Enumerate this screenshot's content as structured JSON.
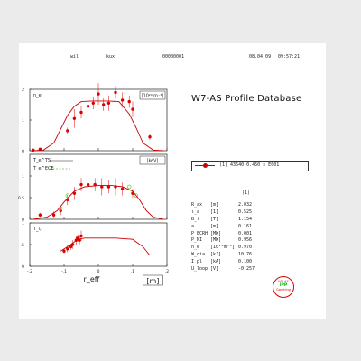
{
  "header": {
    "user": "wil",
    "kind": "kux",
    "shot_id": "00000001",
    "date": "08.04.09",
    "time": "09:57:21"
  },
  "title": "W7-AS   Profile Database",
  "legend": {
    "entry": "(1)  43640  0.450 s  E001"
  },
  "params": {
    "index": "(1)",
    "rows": [
      {
        "name": "R_ax",
        "unit": "[m]",
        "value": "2.032"
      },
      {
        "name": "ι_a",
        "unit": "[1]",
        "value": "0.525"
      },
      {
        "name": "B_t",
        "unit": "[T]",
        "value": "1.154"
      },
      {
        "name": "a",
        "unit": "[m]",
        "value": "0.161"
      },
      {
        "name": "P_ECRH",
        "unit": "[MW]",
        "value": "0.001"
      },
      {
        "name": "P_NI",
        "unit": "[MW]",
        "value": "0.956"
      },
      {
        "name": "n_e",
        "unit": "[10²⁰m⁻³]",
        "value": "0.970"
      },
      {
        "name": "W_dia",
        "unit": "[kJ]",
        "value": "10.76"
      },
      {
        "name": "I_pl",
        "unit": "[kA]",
        "value": "0.100"
      },
      {
        "name": "U_loop",
        "unit": "[V]",
        "value": "-0.257"
      }
    ]
  },
  "stamp": {
    "line1": "W7-AS",
    "line2": "IPP",
    "line3": "Garching"
  },
  "colors": {
    "fit": "#cc0000",
    "points": "#dd0000",
    "ece": "#66cc33",
    "frame": "#222222"
  },
  "chart_data": [
    {
      "type": "scatter",
      "title": "",
      "ylabel": "n_e",
      "unit_label": "[10²⁰ m⁻³]",
      "xlim": [
        -0.2,
        0.2
      ],
      "ylim": [
        0,
        2
      ],
      "yticks": [
        "0",
        "1",
        "2"
      ],
      "series": [
        {
          "role": "points",
          "x": [
            -0.19,
            -0.17,
            -0.09,
            -0.07,
            -0.05,
            -0.03,
            -0.015,
            0.0,
            0.015,
            0.03,
            0.05,
            0.07,
            0.09,
            0.1,
            0.15
          ],
          "values": [
            0.02,
            0.05,
            0.65,
            1.05,
            1.25,
            1.45,
            1.55,
            1.85,
            1.5,
            1.55,
            1.9,
            1.65,
            1.6,
            1.35,
            0.45
          ],
          "err": [
            0.02,
            0.03,
            0.1,
            0.3,
            0.2,
            0.15,
            0.2,
            0.35,
            0.2,
            0.25,
            0.2,
            0.25,
            0.2,
            0.25,
            0.1
          ]
        },
        {
          "role": "fit",
          "x": [
            -0.19,
            -0.16,
            -0.13,
            -0.11,
            -0.09,
            -0.07,
            -0.05,
            -0.02,
            0.0,
            0.03,
            0.06,
            0.09,
            0.11,
            0.13,
            0.16,
            0.19
          ],
          "values": [
            0.0,
            0.02,
            0.25,
            0.7,
            1.15,
            1.45,
            1.6,
            1.62,
            1.62,
            1.62,
            1.6,
            1.2,
            0.75,
            0.25,
            0.02,
            0.0
          ]
        }
      ]
    },
    {
      "type": "scatter",
      "title": "",
      "ylabel": "T_e^TS",
      "ylabel2": "T_e^ECE",
      "unit_label": "[keV]",
      "xlim": [
        -0.2,
        0.2
      ],
      "ylim": [
        0,
        1.5
      ],
      "yticks": [
        "0",
        "0.5",
        "1"
      ],
      "series": [
        {
          "role": "points",
          "x": [
            -0.17,
            -0.13,
            -0.11,
            -0.09,
            -0.07,
            -0.05,
            -0.03,
            -0.01,
            0.01,
            0.03,
            0.05,
            0.07,
            0.1
          ],
          "values": [
            0.1,
            0.1,
            0.2,
            0.45,
            0.6,
            0.8,
            0.8,
            0.8,
            0.75,
            0.75,
            0.75,
            0.7,
            0.6
          ],
          "err": [
            0.05,
            0.08,
            0.1,
            0.12,
            0.15,
            0.15,
            0.2,
            0.15,
            0.2,
            0.15,
            0.2,
            0.15,
            0.1
          ]
        },
        {
          "role": "ece",
          "x": [
            -0.11,
            -0.09,
            0.09,
            0.11
          ],
          "values": [
            0.25,
            0.55,
            0.75,
            0.55
          ]
        },
        {
          "role": "fit",
          "x": [
            -0.19,
            -0.15,
            -0.12,
            -0.1,
            -0.07,
            -0.04,
            0.0,
            0.04,
            0.07,
            0.1,
            0.12,
            0.14,
            0.16,
            0.19
          ],
          "values": [
            0.0,
            0.05,
            0.2,
            0.4,
            0.65,
            0.75,
            0.78,
            0.78,
            0.75,
            0.65,
            0.45,
            0.2,
            0.05,
            0.0
          ]
        }
      ]
    },
    {
      "type": "scatter",
      "title": "",
      "ylabel": "T_i,i",
      "xlabel": "r_eff",
      "xunit": "[m]",
      "xlim": [
        -0.2,
        0.2
      ],
      "ylim": [
        0,
        1
      ],
      "xticks": [
        "-.2",
        "-.1",
        "0",
        ".1",
        ".2"
      ],
      "yticks": [
        "0",
        ".5",
        "1"
      ],
      "series": [
        {
          "role": "points",
          "x": [
            -0.1,
            -0.09,
            -0.08,
            -0.075,
            -0.065,
            -0.06,
            -0.055,
            -0.05
          ],
          "values": [
            0.35,
            0.4,
            0.45,
            0.5,
            0.6,
            0.65,
            0.6,
            0.7
          ],
          "err": [
            0.05,
            0.08,
            0.07,
            0.1,
            0.1,
            0.08,
            0.1,
            0.12
          ]
        },
        {
          "role": "fit",
          "x": [
            -0.11,
            -0.08,
            -0.06,
            -0.04,
            0.0,
            0.05,
            0.1,
            0.13,
            0.15
          ],
          "values": [
            0.35,
            0.5,
            0.62,
            0.65,
            0.65,
            0.65,
            0.62,
            0.45,
            0.25
          ]
        }
      ]
    }
  ]
}
